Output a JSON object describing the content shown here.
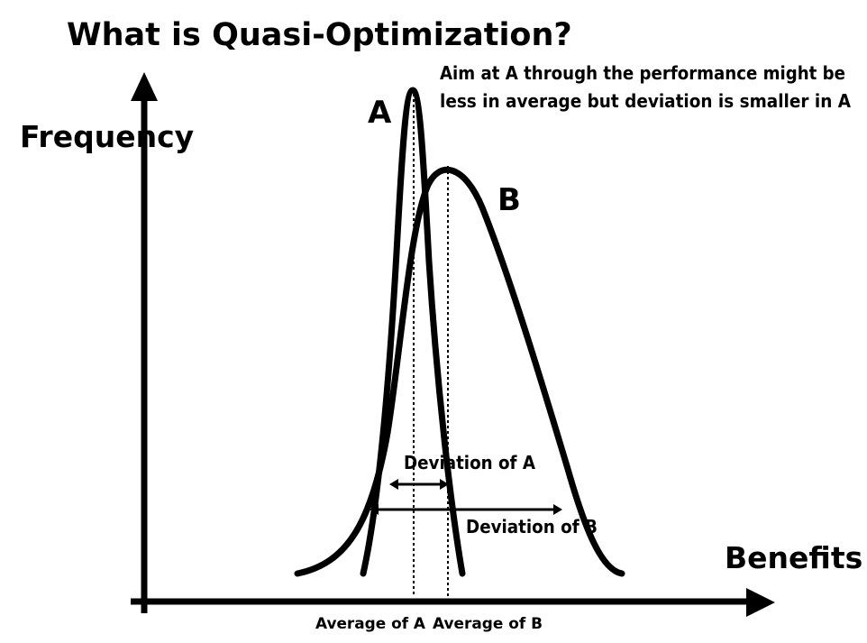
{
  "title": "What is Quasi-Optimization?",
  "note": {
    "line1": "Aim at A through the performance might be",
    "line2": "less in average but deviation is smaller in A"
  },
  "axes": {
    "y_label": "Frequency",
    "x_label": "Benefits"
  },
  "curves": {
    "a_label": "A",
    "b_label": "B"
  },
  "deviation": {
    "a_label": "Deviation of A",
    "b_label": "Deviation of B"
  },
  "averages": {
    "a_label": "Average of A",
    "b_label": "Average of B"
  },
  "colors": {
    "ink": "#000000",
    "background": "#ffffff"
  }
}
